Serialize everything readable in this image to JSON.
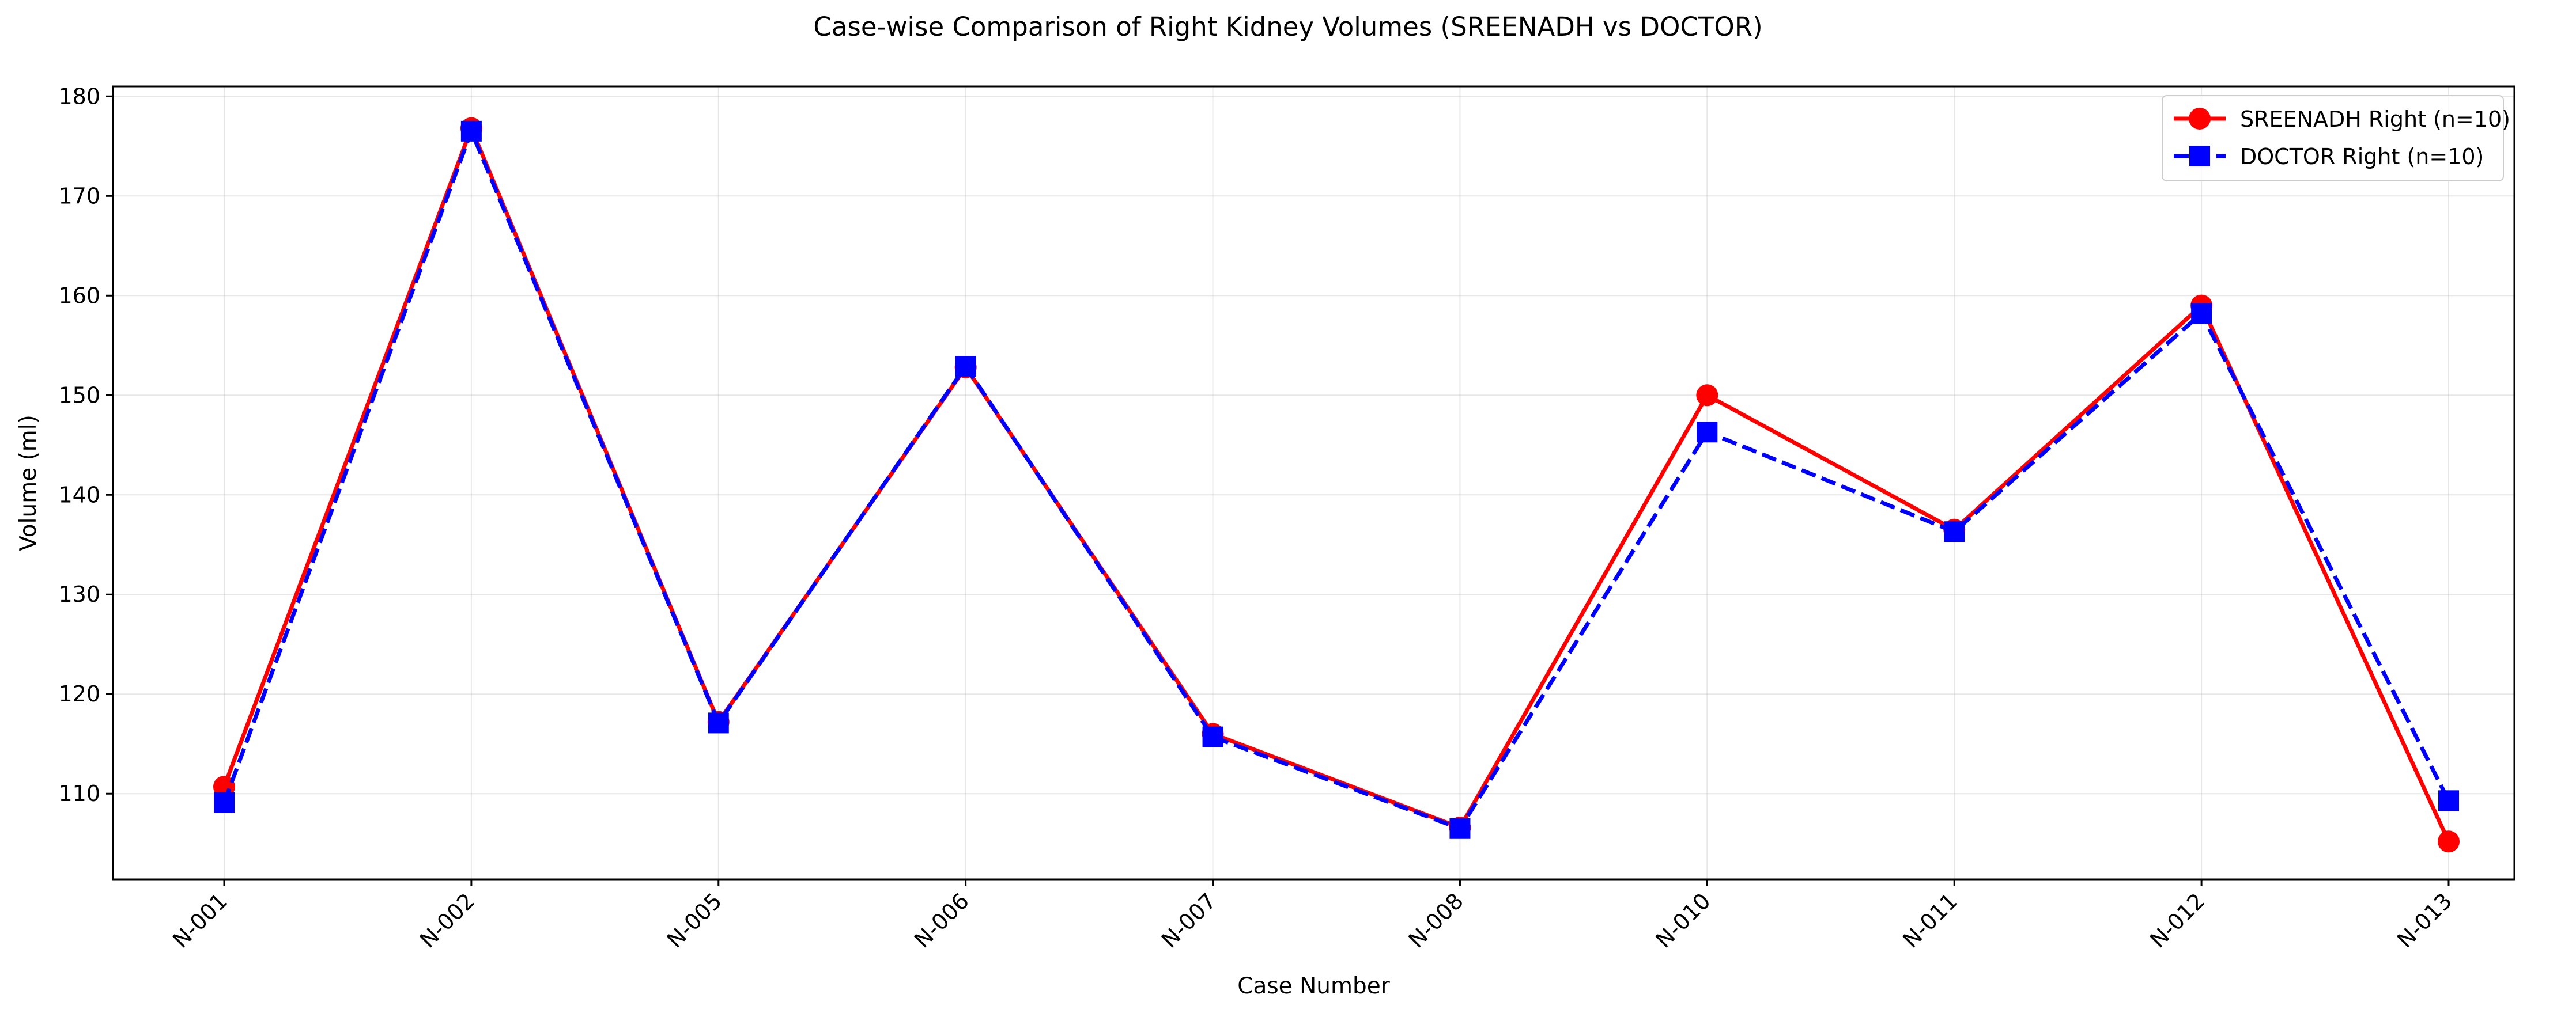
{
  "chart_data": {
    "type": "line",
    "title": "Case-wise Comparison of Right Kidney Volumes (SREENADH vs DOCTOR)",
    "xlabel": "Case Number",
    "ylabel": "Volume (ml)",
    "categories": [
      "N-001",
      "N-002",
      "N-005",
      "N-006",
      "N-007",
      "N-008",
      "N-010",
      "N-011",
      "N-012",
      "N-013"
    ],
    "ylim": [
      101.4,
      181.0
    ],
    "yticks": [
      110,
      120,
      130,
      140,
      150,
      160,
      170,
      180
    ],
    "grid": true,
    "legend_position": "upper right",
    "series": [
      {
        "name": "SREENADH Right (n=10)",
        "values": [
          110.7,
          176.8,
          117.2,
          152.8,
          116.0,
          106.6,
          150.0,
          136.5,
          159.0,
          105.2
        ],
        "color": "#ff0000",
        "marker": "circle",
        "linestyle": "solid"
      },
      {
        "name": "DOCTOR Right (n=10)",
        "values": [
          109.1,
          176.5,
          117.1,
          152.9,
          115.7,
          106.5,
          146.3,
          136.3,
          158.2,
          109.3
        ],
        "color": "#0000ff",
        "marker": "square",
        "linestyle": "dashed"
      }
    ]
  }
}
